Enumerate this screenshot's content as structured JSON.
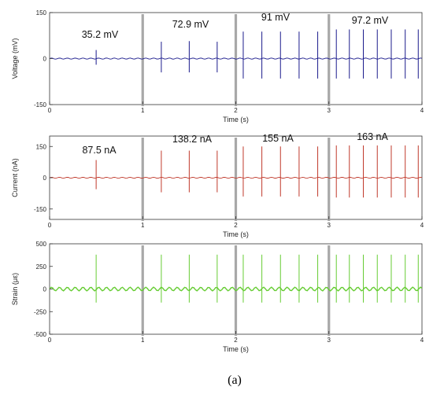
{
  "chart_data": [
    {
      "type": "line",
      "ylabel": "Voltage (mV)",
      "xlabel": "Time (s)",
      "xlim": [
        0,
        4
      ],
      "ylim": [
        -150,
        150
      ],
      "xticks": [
        "0",
        "1",
        "2",
        "3",
        "4"
      ],
      "yticks": [
        150,
        0,
        -150
      ],
      "color": "#1a1a8c",
      "segment_dividers": [
        1,
        2,
        3
      ],
      "annotations": [
        {
          "text": "35.2 mV",
          "x": 0.5
        },
        {
          "text": "72.9 mV",
          "x": 1.5
        },
        {
          "text": "91 mV",
          "x": 2.5
        },
        {
          "text": "97.2 mV",
          "x": 3.5
        }
      ],
      "spikes": [
        {
          "x": 0.5,
          "y": 28,
          "y_min": -20
        },
        {
          "x": 1.2,
          "y": 55,
          "y_min": -45
        },
        {
          "x": 1.5,
          "y": 57,
          "y_min": -45
        },
        {
          "x": 1.8,
          "y": 55,
          "y_min": -45
        },
        {
          "x": 2.08,
          "y": 88,
          "y_min": -65
        },
        {
          "x": 2.28,
          "y": 88,
          "y_min": -65
        },
        {
          "x": 2.48,
          "y": 88,
          "y_min": -65
        },
        {
          "x": 2.68,
          "y": 88,
          "y_min": -65
        },
        {
          "x": 2.88,
          "y": 88,
          "y_min": -65
        },
        {
          "x": 3.08,
          "y": 95,
          "y_min": -65
        },
        {
          "x": 3.22,
          "y": 95,
          "y_min": -65
        },
        {
          "x": 3.37,
          "y": 95,
          "y_min": -65
        },
        {
          "x": 3.52,
          "y": 95,
          "y_min": -65
        },
        {
          "x": 3.67,
          "y": 95,
          "y_min": -65
        },
        {
          "x": 3.82,
          "y": 95,
          "y_min": -65
        },
        {
          "x": 3.96,
          "y": 95,
          "y_min": -65
        }
      ]
    },
    {
      "type": "line",
      "ylabel": "Current (nA)",
      "xlabel": "Time (s)",
      "xlim": [
        0,
        4
      ],
      "ylim": [
        -200,
        200
      ],
      "xticks": [
        "0",
        "1",
        "2",
        "3",
        "4"
      ],
      "yticks": [
        150,
        0,
        -150
      ],
      "color": "#c0392b",
      "segment_dividers": [
        1,
        2,
        3
      ],
      "annotations": [
        {
          "text": "87.5 nA",
          "x": 0.5
        },
        {
          "text": "138.2 nA",
          "x": 1.5
        },
        {
          "text": "155 nA",
          "x": 2.5
        },
        {
          "text": "163 nA",
          "x": 3.5
        }
      ],
      "spikes": [
        {
          "x": 0.5,
          "y": 85,
          "y_min": -55
        },
        {
          "x": 1.2,
          "y": 130,
          "y_min": -70
        },
        {
          "x": 1.5,
          "y": 130,
          "y_min": -70
        },
        {
          "x": 1.8,
          "y": 130,
          "y_min": -70
        },
        {
          "x": 2.08,
          "y": 150,
          "y_min": -90
        },
        {
          "x": 2.28,
          "y": 150,
          "y_min": -90
        },
        {
          "x": 2.48,
          "y": 150,
          "y_min": -90
        },
        {
          "x": 2.68,
          "y": 150,
          "y_min": -90
        },
        {
          "x": 2.88,
          "y": 150,
          "y_min": -90
        },
        {
          "x": 3.08,
          "y": 155,
          "y_min": -95
        },
        {
          "x": 3.22,
          "y": 155,
          "y_min": -95
        },
        {
          "x": 3.37,
          "y": 155,
          "y_min": -95
        },
        {
          "x": 3.52,
          "y": 155,
          "y_min": -95
        },
        {
          "x": 3.67,
          "y": 155,
          "y_min": -95
        },
        {
          "x": 3.82,
          "y": 155,
          "y_min": -95
        },
        {
          "x": 3.96,
          "y": 155,
          "y_min": -95
        }
      ]
    },
    {
      "type": "line",
      "ylabel": "Strain (με)",
      "xlabel": "Time (s)",
      "xlim": [
        0,
        4
      ],
      "ylim": [
        -500,
        500
      ],
      "xticks": [
        "0",
        "1",
        "2",
        "3",
        "4"
      ],
      "yticks": [
        500,
        250,
        0,
        -250,
        -500
      ],
      "color": "#66cc33",
      "segment_dividers": [
        1,
        2,
        3
      ],
      "annotations": [],
      "spikes": [
        {
          "x": 0.5,
          "y": 380,
          "y_min": -150
        },
        {
          "x": 1.2,
          "y": 380,
          "y_min": -150
        },
        {
          "x": 1.5,
          "y": 380,
          "y_min": -150
        },
        {
          "x": 1.8,
          "y": 380,
          "y_min": -150
        },
        {
          "x": 2.08,
          "y": 380,
          "y_min": -150
        },
        {
          "x": 2.28,
          "y": 380,
          "y_min": -150
        },
        {
          "x": 2.48,
          "y": 380,
          "y_min": -150
        },
        {
          "x": 2.68,
          "y": 380,
          "y_min": -150
        },
        {
          "x": 2.88,
          "y": 380,
          "y_min": -150
        },
        {
          "x": 3.08,
          "y": 380,
          "y_min": -150
        },
        {
          "x": 3.22,
          "y": 380,
          "y_min": -150
        },
        {
          "x": 3.37,
          "y": 380,
          "y_min": -150
        },
        {
          "x": 3.52,
          "y": 380,
          "y_min": -150
        },
        {
          "x": 3.67,
          "y": 380,
          "y_min": -150
        },
        {
          "x": 3.82,
          "y": 380,
          "y_min": -150
        },
        {
          "x": 3.96,
          "y": 380,
          "y_min": -150
        }
      ]
    }
  ],
  "caption": "(a)"
}
